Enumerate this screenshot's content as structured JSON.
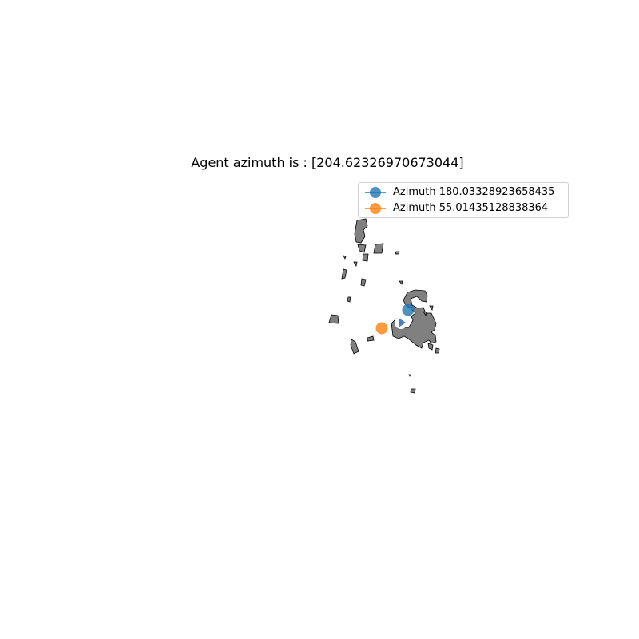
{
  "title": "Agent azimuth is : [204.62326970673044]",
  "legend": {
    "entries": [
      {
        "label": "Azimuth 180.03328923658435",
        "color": "#1f77b4"
      },
      {
        "label": "Azimuth 55.01435128838364",
        "color": "#ff7f0e"
      }
    ]
  },
  "colors": {
    "obstacle_fill": "#808080",
    "obstacle_edge": "#000000",
    "agent_marker": "#4a7fc8",
    "agent_halo": "#ffffff"
  },
  "agent": {
    "azimuth": 204.62326970673044,
    "marker": "play-triangle-icon"
  }
}
